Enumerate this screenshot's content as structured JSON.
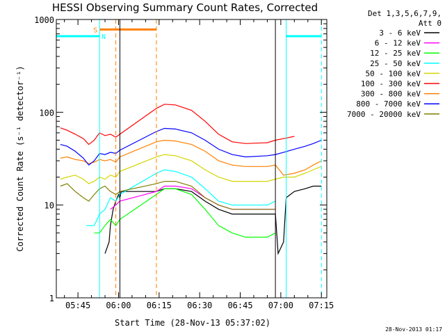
{
  "chart_data": {
    "type": "line",
    "title": "HESSI Observing Summary Count Rates, Corrected",
    "xlabel": "Start Time (28-Nov-13 05:37:02)",
    "ylabel": "Corrected Count Rate (s⁻¹ detector⁻¹)",
    "y_scale": "log",
    "ylim": [
      1,
      1000
    ],
    "x_unit": "minutes after 05:37",
    "xlim": [
      0,
      100
    ],
    "x_ticks": [
      {
        "x": 8,
        "label": "05:45"
      },
      {
        "x": 23,
        "label": "06:00"
      },
      {
        "x": 38,
        "label": "06:15"
      },
      {
        "x": 53,
        "label": "06:30"
      },
      {
        "x": 68,
        "label": "06:45"
      },
      {
        "x": 83,
        "label": "07:00"
      },
      {
        "x": 98,
        "label": "07:15"
      }
    ],
    "y_ticks": [
      {
        "y": 1,
        "label": "1"
      },
      {
        "y": 10,
        "label": "10"
      },
      {
        "y": 100,
        "label": "100"
      },
      {
        "y": 1000,
        "label": "1000"
      }
    ],
    "legend_header": [
      "Det 1,3,5,6,7,9,",
      "Att 0"
    ],
    "legend_position": "outside-right",
    "series": [
      {
        "name": "3 - 6 keV",
        "color": "#000000",
        "points": [
          [
            18,
            3
          ],
          [
            19.5,
            4
          ],
          [
            20,
            6
          ],
          [
            21,
            9
          ],
          [
            22,
            11
          ],
          [
            23,
            13
          ],
          [
            23.5,
            12
          ],
          [
            24,
            14
          ],
          [
            37,
            14
          ],
          [
            40,
            15
          ],
          [
            44,
            15
          ],
          [
            50,
            14
          ],
          [
            55,
            11
          ],
          [
            60,
            9
          ],
          [
            65,
            8
          ],
          [
            70,
            8
          ],
          [
            78,
            8
          ],
          [
            81,
            8
          ],
          [
            82,
            3
          ],
          [
            84,
            4
          ],
          [
            85,
            12
          ],
          [
            88,
            14
          ],
          [
            92,
            15
          ],
          [
            95,
            16
          ],
          [
            98,
            16
          ]
        ]
      },
      {
        "name": "6 - 12 keV",
        "color": "#ff00ff",
        "points": [
          [
            20,
            9
          ],
          [
            22,
            10
          ],
          [
            23.5,
            11
          ],
          [
            37,
            14
          ],
          [
            40,
            16
          ],
          [
            44,
            16
          ],
          [
            50,
            15
          ],
          [
            55,
            12
          ],
          [
            60,
            10
          ],
          [
            65,
            9
          ],
          [
            70,
            9
          ],
          [
            78,
            9
          ],
          [
            81,
            9
          ]
        ]
      },
      {
        "name": "12 - 25 keV",
        "color": "#00ff00",
        "points": [
          [
            14,
            5
          ],
          [
            16,
            5
          ],
          [
            18,
            6
          ],
          [
            20,
            7
          ],
          [
            22,
            6
          ],
          [
            23.5,
            7
          ],
          [
            37,
            13
          ],
          [
            40,
            15
          ],
          [
            44,
            15
          ],
          [
            50,
            13
          ],
          [
            55,
            9
          ],
          [
            60,
            6
          ],
          [
            65,
            5
          ],
          [
            70,
            4.5
          ],
          [
            78,
            4.5
          ],
          [
            81,
            5
          ]
        ]
      },
      {
        "name": "25 - 50 keV",
        "color": "#00ffff",
        "points": [
          [
            11,
            6
          ],
          [
            14,
            6
          ],
          [
            16,
            8
          ],
          [
            18,
            9
          ],
          [
            20,
            12
          ],
          [
            22,
            11
          ],
          [
            23.5,
            13
          ],
          [
            37,
            22
          ],
          [
            40,
            24
          ],
          [
            44,
            23
          ],
          [
            50,
            20
          ],
          [
            55,
            15
          ],
          [
            60,
            11
          ],
          [
            65,
            10
          ],
          [
            70,
            10
          ],
          [
            78,
            10
          ],
          [
            81,
            11
          ]
        ]
      },
      {
        "name": "50 - 100 keV",
        "color": "#d4d400",
        "points": [
          [
            1.5,
            19
          ],
          [
            4,
            20
          ],
          [
            7,
            21
          ],
          [
            10,
            19
          ],
          [
            12,
            17
          ],
          [
            14,
            18
          ],
          [
            16,
            20
          ],
          [
            18,
            19
          ],
          [
            20,
            21
          ],
          [
            22,
            20
          ],
          [
            23.5,
            23
          ],
          [
            37,
            33
          ],
          [
            40,
            35
          ],
          [
            44,
            34
          ],
          [
            50,
            30
          ],
          [
            55,
            24
          ],
          [
            60,
            20
          ],
          [
            65,
            18
          ],
          [
            70,
            18
          ],
          [
            78,
            18
          ],
          [
            81,
            19
          ],
          [
            84,
            20
          ],
          [
            88,
            20
          ],
          [
            92,
            22
          ],
          [
            95,
            24
          ],
          [
            98,
            26
          ]
        ]
      },
      {
        "name": "100 - 300 keV",
        "color": "#ff0000",
        "points": [
          [
            1.5,
            68
          ],
          [
            4,
            64
          ],
          [
            7,
            58
          ],
          [
            10,
            52
          ],
          [
            12,
            45
          ],
          [
            14,
            50
          ],
          [
            16,
            60
          ],
          [
            18,
            56
          ],
          [
            20,
            58
          ],
          [
            22,
            54
          ],
          [
            23.5,
            58
          ],
          [
            37,
            110
          ],
          [
            40,
            122
          ],
          [
            44,
            120
          ],
          [
            50,
            105
          ],
          [
            55,
            80
          ],
          [
            60,
            58
          ],
          [
            65,
            48
          ],
          [
            70,
            46
          ],
          [
            78,
            47
          ],
          [
            81,
            50
          ],
          [
            84,
            52
          ],
          [
            88,
            55
          ]
        ]
      },
      {
        "name": "300 - 800 keV",
        "color": "#ff7f00",
        "points": [
          [
            1.5,
            32
          ],
          [
            4,
            33
          ],
          [
            7,
            31
          ],
          [
            10,
            30
          ],
          [
            12,
            28
          ],
          [
            14,
            29
          ],
          [
            16,
            31
          ],
          [
            18,
            30
          ],
          [
            20,
            31
          ],
          [
            22,
            29
          ],
          [
            23.5,
            33
          ],
          [
            37,
            48
          ],
          [
            40,
            50
          ],
          [
            44,
            49
          ],
          [
            50,
            45
          ],
          [
            55,
            38
          ],
          [
            60,
            30
          ],
          [
            65,
            27
          ],
          [
            70,
            26
          ],
          [
            78,
            26
          ],
          [
            81,
            27
          ],
          [
            84,
            21
          ],
          [
            88,
            22
          ],
          [
            92,
            24
          ],
          [
            95,
            27
          ],
          [
            98,
            30
          ]
        ]
      },
      {
        "name": "800 - 7000 keV",
        "color": "#0000ff",
        "points": [
          [
            1.5,
            45
          ],
          [
            4,
            43
          ],
          [
            7,
            38
          ],
          [
            10,
            32
          ],
          [
            12,
            27
          ],
          [
            14,
            30
          ],
          [
            16,
            36
          ],
          [
            18,
            35
          ],
          [
            20,
            37
          ],
          [
            22,
            36
          ],
          [
            23.5,
            39
          ],
          [
            37,
            62
          ],
          [
            40,
            67
          ],
          [
            44,
            66
          ],
          [
            50,
            60
          ],
          [
            55,
            50
          ],
          [
            60,
            40
          ],
          [
            65,
            35
          ],
          [
            70,
            33
          ],
          [
            78,
            34
          ],
          [
            81,
            35
          ],
          [
            84,
            37
          ],
          [
            88,
            40
          ],
          [
            92,
            43
          ],
          [
            95,
            46
          ],
          [
            98,
            50
          ]
        ]
      },
      {
        "name": "7000 - 20000 keV",
        "color": "#7f7f00",
        "points": [
          [
            1.5,
            16
          ],
          [
            4,
            17
          ],
          [
            7,
            14
          ],
          [
            10,
            12
          ],
          [
            12,
            11
          ],
          [
            14,
            13
          ],
          [
            16,
            15
          ],
          [
            18,
            16
          ],
          [
            20,
            14
          ],
          [
            22,
            13
          ],
          [
            23.5,
            14
          ],
          [
            37,
            17
          ],
          [
            40,
            18
          ],
          [
            44,
            18
          ],
          [
            50,
            16
          ],
          [
            55,
            12
          ],
          [
            60,
            10
          ],
          [
            65,
            9
          ],
          [
            70,
            9
          ],
          [
            78,
            9
          ],
          [
            81,
            9
          ]
        ]
      }
    ],
    "annotations": [
      {
        "label": "S",
        "color": "#ff7f00",
        "x": 14.5,
        "y": 780
      },
      {
        "label": "N",
        "color": "#00ffff",
        "x": 17.5,
        "y": 660
      }
    ],
    "segments": [
      {
        "kind": "line",
        "color": "#00ffff",
        "x": [
          0,
          16
        ],
        "y": 660
      },
      {
        "kind": "line",
        "color": "#00ffff",
        "x": [
          85,
          98
        ],
        "y": 660
      },
      {
        "kind": "line",
        "color": "#ff7f00",
        "x": [
          16,
          37
        ],
        "y": 780
      },
      {
        "kind": "vline",
        "color": "#00ffff",
        "x": 16,
        "dashed": false
      },
      {
        "kind": "vline",
        "color": "#00ffff",
        "x": 85,
        "dashed": false
      },
      {
        "kind": "vline",
        "color": "#00ffff",
        "x": 98,
        "dashed": true
      },
      {
        "kind": "vline",
        "color": "#ff7f00",
        "x": 22,
        "dashed": true
      },
      {
        "kind": "vline",
        "color": "#ff7f00",
        "x": 37,
        "dashed": true
      },
      {
        "kind": "vline",
        "color": "#000000",
        "x": 23.5,
        "dashed": false
      },
      {
        "kind": "vline",
        "color": "#000000",
        "x": 81,
        "dashed": false
      }
    ],
    "grid": false
  },
  "footer": {
    "timestamp": "28-Nov-2013 01:17"
  }
}
